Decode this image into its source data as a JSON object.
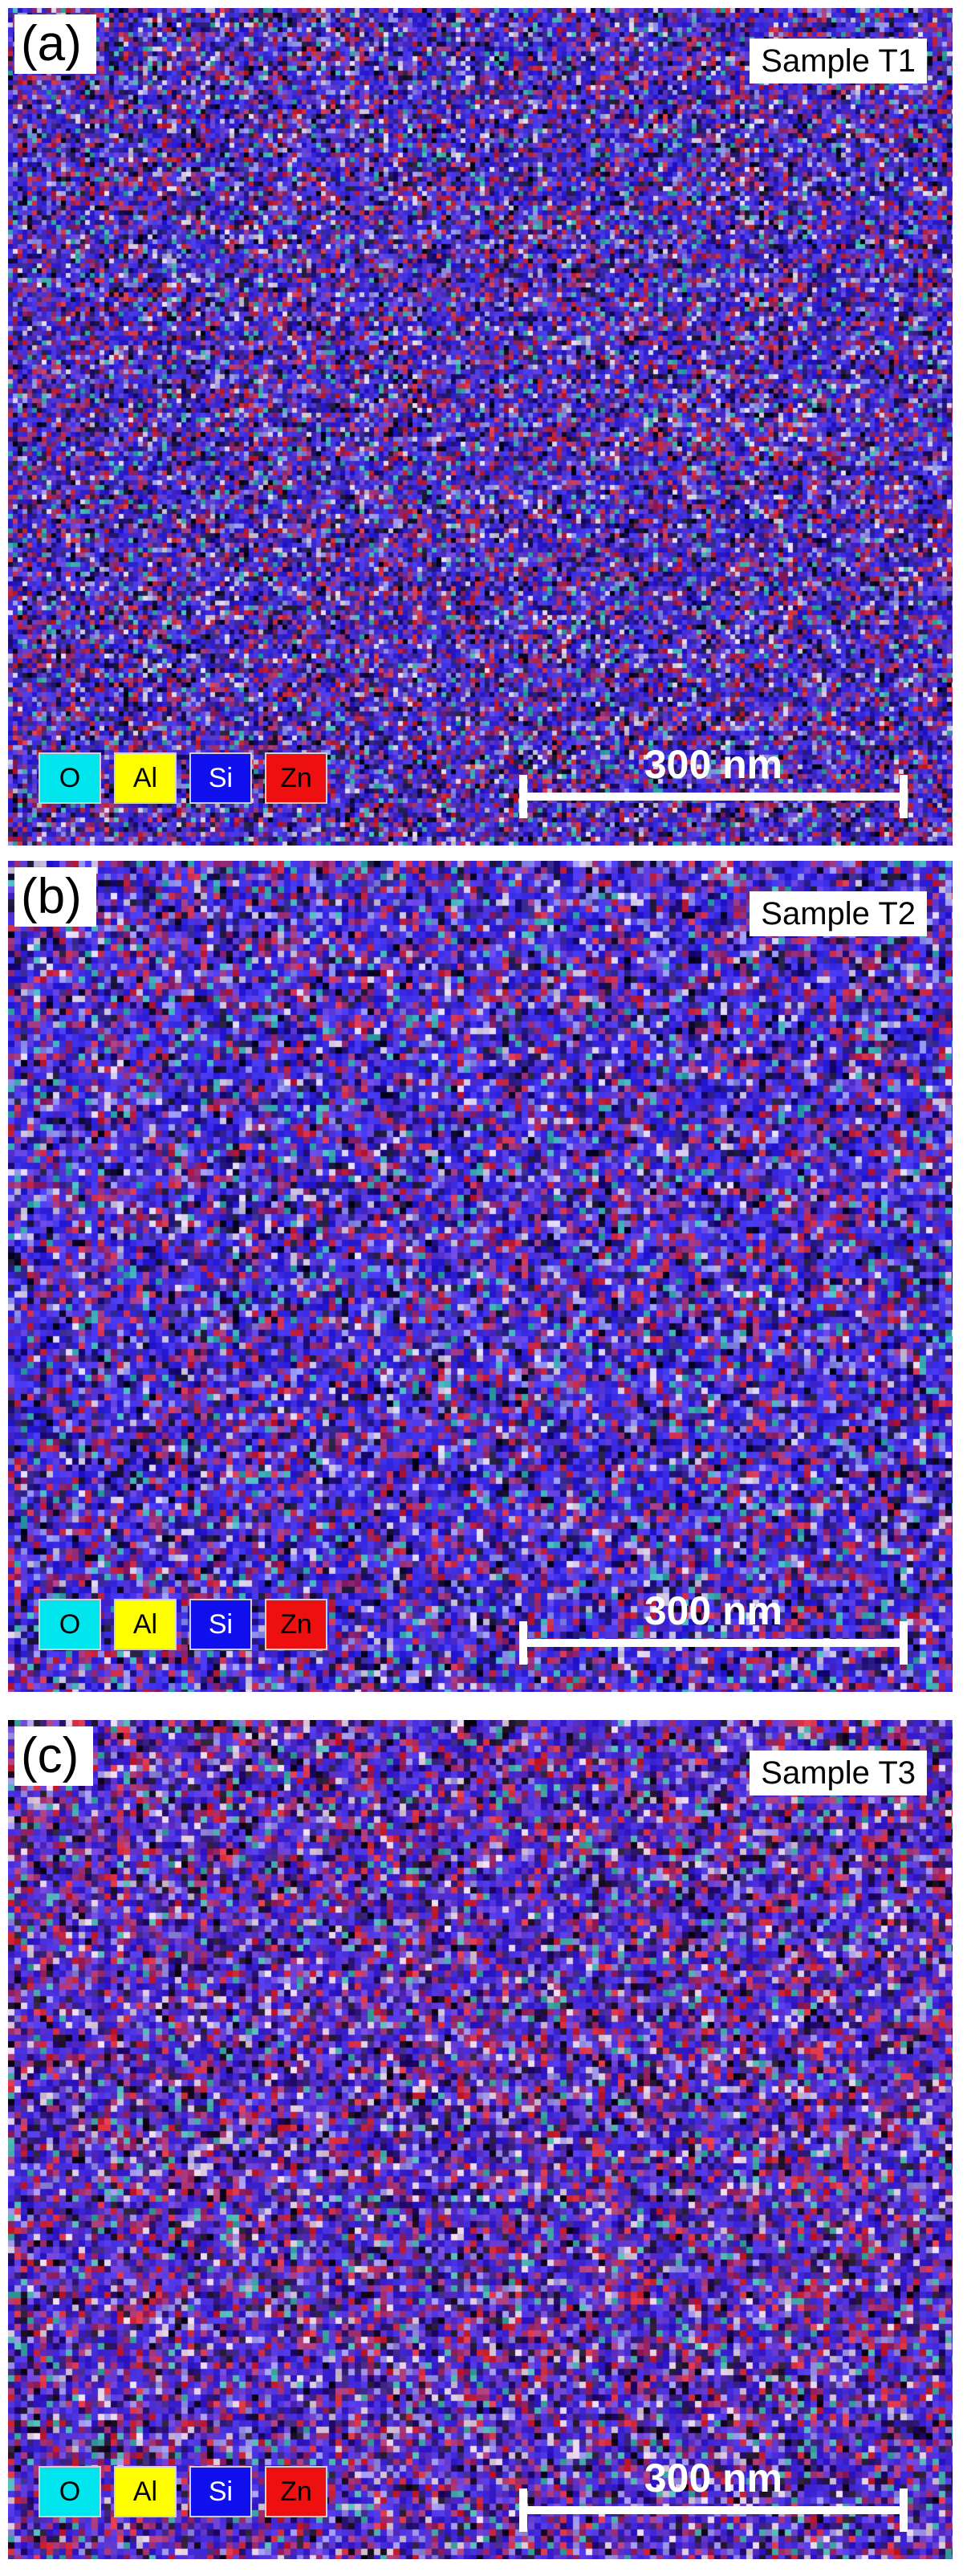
{
  "panels": [
    {
      "letter": "(a)",
      "sample": "Sample T1",
      "scale": "300 nm"
    },
    {
      "letter": "(b)",
      "sample": "Sample T2",
      "scale": "300 nm"
    },
    {
      "letter": "(c)",
      "sample": "Sample T3",
      "scale": "300 nm"
    }
  ],
  "legend": [
    {
      "label": "O",
      "bg": "#00e5ee",
      "fg": "#000000"
    },
    {
      "label": "Al",
      "bg": "#ffff00",
      "fg": "#000000"
    },
    {
      "label": "Si",
      "bg": "#1010ee",
      "fg": "#ffffff"
    },
    {
      "label": "Zn",
      "bg": "#ee1010",
      "fg": "#000000"
    }
  ]
}
